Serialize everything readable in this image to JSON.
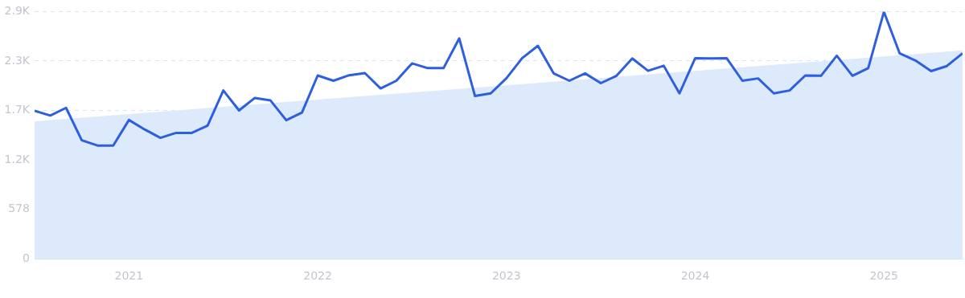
{
  "chart_data": {
    "type": "line",
    "x": [
      "2020-07",
      "2020-08",
      "2020-09",
      "2020-10",
      "2020-11",
      "2020-12",
      "2021-01",
      "2021-02",
      "2021-03",
      "2021-04",
      "2021-05",
      "2021-06",
      "2021-07",
      "2021-08",
      "2021-09",
      "2021-10",
      "2021-11",
      "2021-12",
      "2022-01",
      "2022-02",
      "2022-03",
      "2022-04",
      "2022-05",
      "2022-06",
      "2022-07",
      "2022-08",
      "2022-09",
      "2022-10",
      "2022-11",
      "2022-12",
      "2023-01",
      "2023-02",
      "2023-03",
      "2023-04",
      "2023-05",
      "2023-06",
      "2023-07",
      "2023-08",
      "2023-09",
      "2023-10",
      "2023-11",
      "2023-12",
      "2024-01",
      "2024-02",
      "2024-03",
      "2024-04",
      "2024-05",
      "2024-06",
      "2024-07",
      "2024-08",
      "2024-09",
      "2024-10",
      "2024-11",
      "2024-12",
      "2025-01",
      "2025-02",
      "2025-03",
      "2025-04",
      "2025-05",
      "2025-06"
    ],
    "series": [
      {
        "type": "area",
        "x": [
          "2020-07",
          "2025-06"
        ],
        "values": [
          1607,
          2435
        ],
        "color": "#dceafb"
      },
      {
        "color": "#2d5fe0",
        "values": [
          1730,
          1674,
          1764,
          1385,
          1323,
          1323,
          1622,
          1511,
          1413,
          1471,
          1471,
          1557,
          1967,
          1733,
          1880,
          1850,
          1619,
          1708,
          2142,
          2081,
          2145,
          2170,
          1991,
          2081,
          2284,
          2228,
          2228,
          2576,
          1902,
          1933,
          2111,
          2345,
          2490,
          2167,
          2081,
          2167,
          2053,
          2139,
          2342,
          2197,
          2256,
          1933,
          2345,
          2342,
          2345,
          2081,
          2108,
          1933,
          1967,
          2142,
          2139,
          2373,
          2139,
          2228,
          2887,
          2401,
          2318,
          2194,
          2253,
          2401
        ]
      }
    ],
    "xlim": [
      "2020-07",
      "2025-06"
    ],
    "xticks": [
      "2021",
      "2022",
      "2023",
      "2024",
      "2025"
    ],
    "ylim": [
      0,
      2890
    ],
    "yticks": [
      0,
      578,
      {
        "value": 1156,
        "label": "1.2K"
      },
      {
        "value": 1734,
        "label": "1.7K"
      },
      {
        "value": 2312,
        "label": "2.3K"
      },
      {
        "value": 2890,
        "label": "2.9K"
      }
    ],
    "grid": "y"
  }
}
